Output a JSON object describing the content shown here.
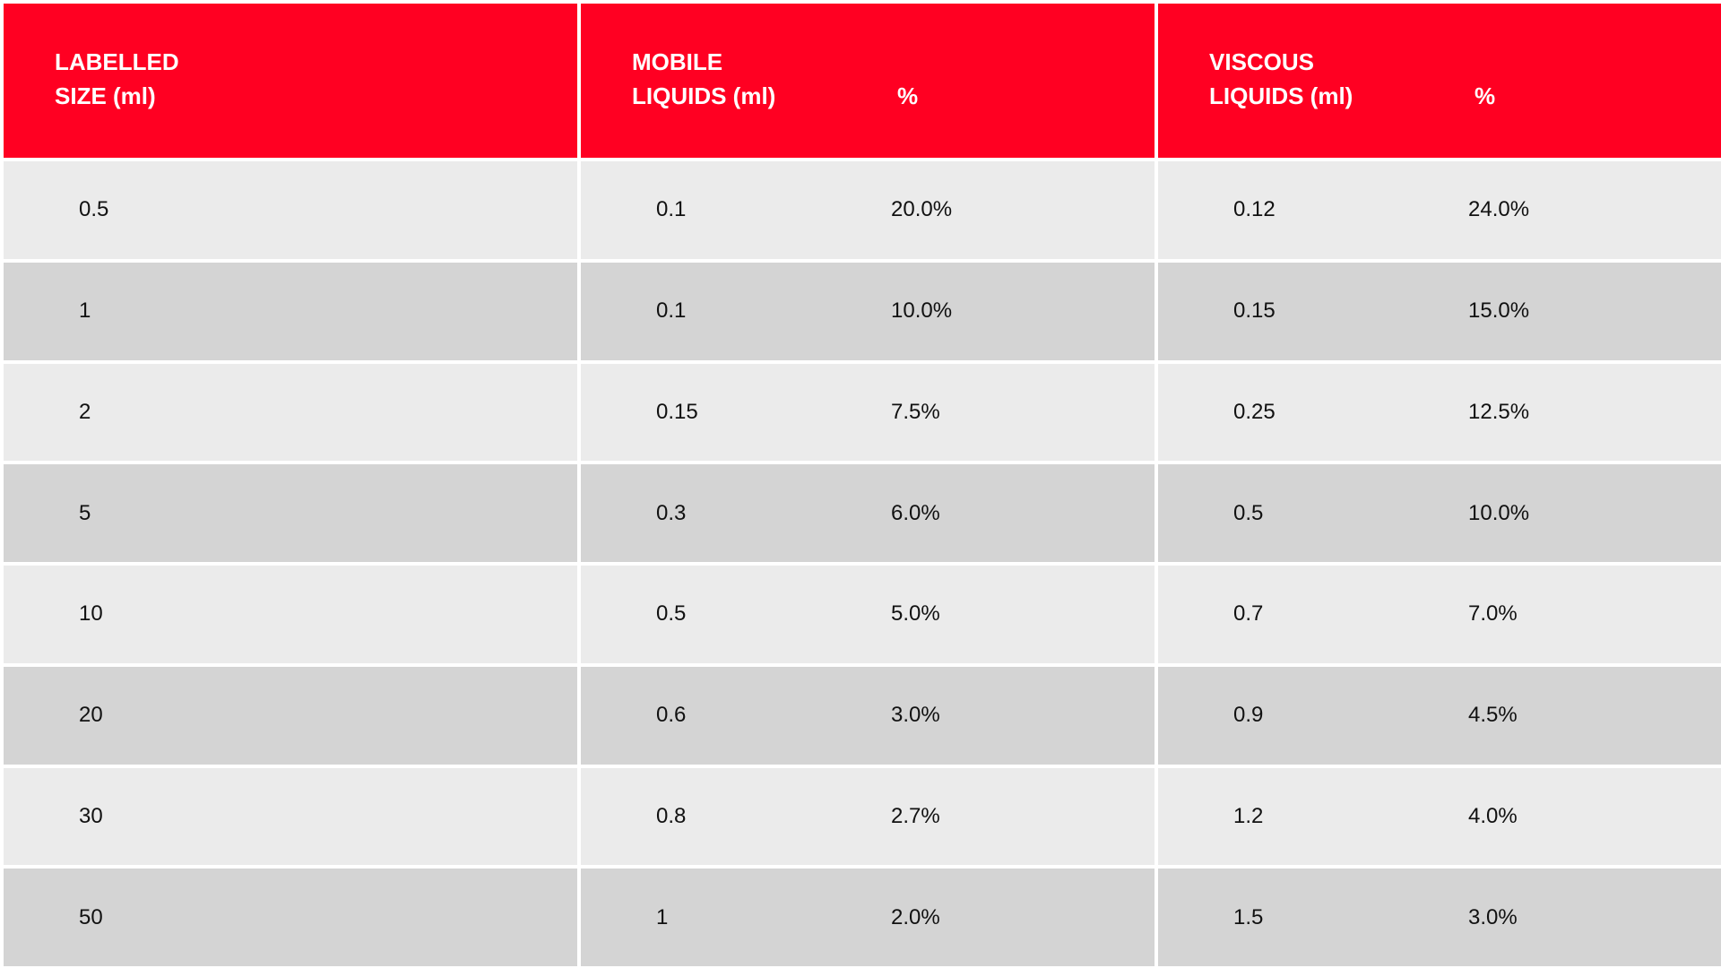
{
  "header": {
    "col1_line1": "LABELLED",
    "col1_line2": "SIZE (ml)",
    "col2_line1": "MOBILE",
    "col2_line2": "LIQUIDS (ml)",
    "col2_pct": "%",
    "col3_line1": "VISCOUS",
    "col3_line2": "LIQUIDS (ml)",
    "col3_pct": "%"
  },
  "rows": [
    {
      "size": "0.5",
      "mobile": "0.1",
      "mobile_pct": "20.0%",
      "viscous": "0.12",
      "viscous_pct": "24.0%"
    },
    {
      "size": "1",
      "mobile": "0.1",
      "mobile_pct": "10.0%",
      "viscous": "0.15",
      "viscous_pct": "15.0%"
    },
    {
      "size": "2",
      "mobile": "0.15",
      "mobile_pct": "7.5%",
      "viscous": "0.25",
      "viscous_pct": "12.5%"
    },
    {
      "size": "5",
      "mobile": "0.3",
      "mobile_pct": "6.0%",
      "viscous": "0.5",
      "viscous_pct": "10.0%"
    },
    {
      "size": "10",
      "mobile": "0.5",
      "mobile_pct": "5.0%",
      "viscous": "0.7",
      "viscous_pct": "7.0%"
    },
    {
      "size": "20",
      "mobile": "0.6",
      "mobile_pct": "3.0%",
      "viscous": "0.9",
      "viscous_pct": "4.5%"
    },
    {
      "size": "30",
      "mobile": "0.8",
      "mobile_pct": "2.7%",
      "viscous": "1.2",
      "viscous_pct": "4.0%"
    },
    {
      "size": "50",
      "mobile": "1",
      "mobile_pct": "2.0%",
      "viscous": "1.5",
      "viscous_pct": "3.0%"
    }
  ],
  "colors": {
    "header_bg": "#ff0022",
    "row_light": "#ebebeb",
    "row_dark": "#d4d4d4"
  }
}
